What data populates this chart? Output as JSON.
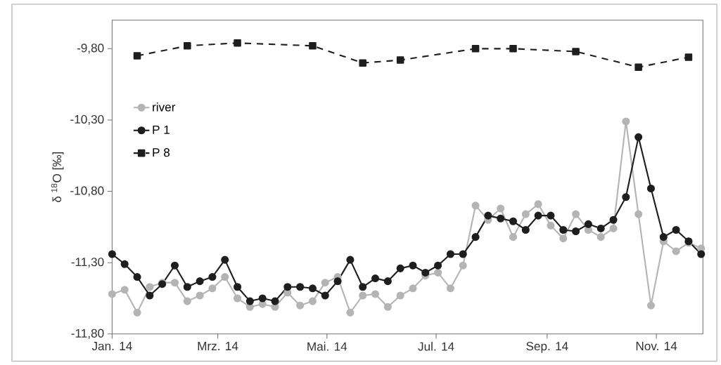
{
  "chart_data": {
    "type": "line",
    "ylabel": "δ $^{18}$O [‰]",
    "xlim": [
      "2014-01-01",
      "2014-11-27"
    ],
    "xticks": [
      {
        "value": "2014-01-01",
        "label": "Jan. 14"
      },
      {
        "value": "2014-03-01",
        "label": "Mrz. 14"
      },
      {
        "value": "2014-05-01",
        "label": "Mai. 14"
      },
      {
        "value": "2014-07-01",
        "label": "Jul. 14"
      },
      {
        "value": "2014-09-01",
        "label": "Sep. 14"
      },
      {
        "value": "2014-11-01",
        "label": "Nov. 14"
      }
    ],
    "ylim": [
      -11.8,
      -9.6
    ],
    "yticks": [
      {
        "value": -9.8,
        "label": "-9,80"
      },
      {
        "value": -10.3,
        "label": "-10,30"
      },
      {
        "value": -10.8,
        "label": "-10,80"
      },
      {
        "value": -11.3,
        "label": "-11,30"
      },
      {
        "value": -11.8,
        "label": "-11,80"
      }
    ],
    "x": [
      "2014-01-01",
      "2014-01-08",
      "2014-01-15",
      "2014-01-22",
      "2014-01-29",
      "2014-02-05",
      "2014-02-12",
      "2014-02-19",
      "2014-02-26",
      "2014-03-05",
      "2014-03-12",
      "2014-03-19",
      "2014-03-26",
      "2014-04-02",
      "2014-04-09",
      "2014-04-16",
      "2014-04-23",
      "2014-04-30",
      "2014-05-07",
      "2014-05-14",
      "2014-05-21",
      "2014-05-28",
      "2014-06-04",
      "2014-06-11",
      "2014-06-18",
      "2014-06-25",
      "2014-07-02",
      "2014-07-09",
      "2014-07-16",
      "2014-07-23",
      "2014-07-30",
      "2014-08-06",
      "2014-08-13",
      "2014-08-20",
      "2014-08-27",
      "2014-09-03",
      "2014-09-10",
      "2014-09-17",
      "2014-09-24",
      "2014-10-01",
      "2014-10-08",
      "2014-10-15",
      "2014-10-22",
      "2014-10-29",
      "2014-11-05",
      "2014-11-12",
      "2014-11-19",
      "2014-11-26"
    ],
    "legend": "top left",
    "series": [
      {
        "name": "river",
        "color": "#b4b4b4",
        "marker": "circle",
        "line_style": "solid",
        "values": [
          -11.52,
          -11.49,
          -11.65,
          -11.47,
          -11.44,
          -11.44,
          -11.57,
          -11.53,
          -11.48,
          -11.4,
          -11.55,
          -11.61,
          -11.59,
          -11.61,
          -11.51,
          -11.6,
          -11.57,
          -11.44,
          -11.4,
          -11.65,
          -11.53,
          -11.52,
          -11.61,
          -11.53,
          -11.48,
          -11.39,
          -11.37,
          -11.48,
          -11.32,
          -10.9,
          -11.0,
          -10.92,
          -11.12,
          -10.96,
          -10.89,
          -11.04,
          -11.13,
          -10.96,
          -11.07,
          -11.12,
          -11.06,
          -10.31,
          -10.96,
          -11.6,
          -11.15,
          -11.22,
          -11.16,
          -11.2
        ]
      },
      {
        "name": "P 1",
        "color": "#1e1e1e",
        "marker": "circle",
        "line_style": "solid",
        "values": [
          -11.24,
          -11.31,
          -11.4,
          -11.53,
          -11.45,
          -11.32,
          -11.47,
          -11.43,
          -11.4,
          -11.28,
          -11.47,
          -11.57,
          -11.55,
          -11.57,
          -11.47,
          -11.47,
          -11.48,
          -11.53,
          -11.43,
          -11.28,
          -11.47,
          -11.41,
          -11.43,
          -11.34,
          -11.32,
          -11.37,
          -11.32,
          -11.24,
          -11.24,
          -11.12,
          -10.97,
          -10.99,
          -11.01,
          -11.07,
          -10.97,
          -10.97,
          -11.07,
          -11.08,
          -11.03,
          -11.06,
          -11.0,
          -10.84,
          -10.42,
          -10.78,
          -11.12,
          -11.07,
          -11.15,
          -11.24
        ]
      },
      {
        "name": "P 8",
        "color": "#1e1e1e",
        "marker": "square",
        "line_style": "dashed",
        "x": [
          "2014-01-15",
          "2014-02-12",
          "2014-03-12",
          "2014-04-23",
          "2014-05-21",
          "2014-06-11",
          "2014-07-23",
          "2014-08-13",
          "2014-09-17",
          "2014-10-22",
          "2014-11-19"
        ],
        "values": [
          -9.85,
          -9.78,
          -9.76,
          -9.78,
          -9.9,
          -9.88,
          -9.8,
          -9.8,
          -9.82,
          -9.93,
          -9.86
        ]
      }
    ]
  }
}
